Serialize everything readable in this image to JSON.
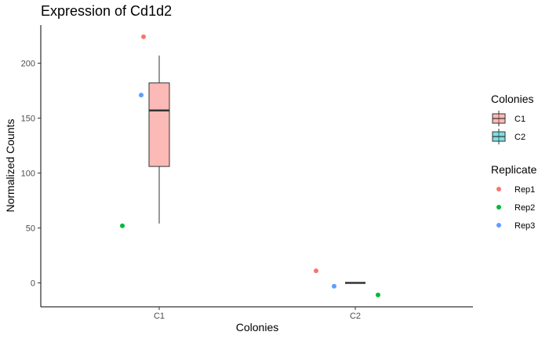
{
  "chart_data": {
    "type": "boxplot",
    "title": "Expression of Cd1d2",
    "xlabel": "Colonies",
    "ylabel": "Normalized Counts",
    "categories": [
      "C1",
      "C2"
    ],
    "ylim": [
      -22,
      235
    ],
    "yticks": [
      0,
      50,
      100,
      150,
      200
    ],
    "grid": false,
    "boxes": [
      {
        "category": "C1",
        "min": 54,
        "q1": 106,
        "median": 157,
        "q3": 182,
        "max": 207,
        "color": "#F8766D"
      },
      {
        "category": "C2",
        "min": 0,
        "q1": 0,
        "median": 0,
        "q3": 0,
        "max": 0,
        "color": "#00BFC4"
      }
    ],
    "points": [
      {
        "category": "C1",
        "replicate": "Rep1",
        "y": 224
      },
      {
        "category": "C1",
        "replicate": "Rep2",
        "y": 52
      },
      {
        "category": "C1",
        "replicate": "Rep3",
        "y": 171
      },
      {
        "category": "C2",
        "replicate": "Rep1",
        "y": 11
      },
      {
        "category": "C2",
        "replicate": "Rep2",
        "y": -11
      },
      {
        "category": "C2",
        "replicate": "Rep3",
        "y": -3
      }
    ],
    "legends": [
      {
        "title": "Colonies",
        "kind": "box",
        "items": [
          {
            "label": "C1",
            "color": "#F8766D"
          },
          {
            "label": "C2",
            "color": "#00BFC4"
          }
        ]
      },
      {
        "title": "Replicate",
        "kind": "point",
        "items": [
          {
            "label": "Rep1",
            "color": "#F8766D"
          },
          {
            "label": "Rep2",
            "color": "#00BA38"
          },
          {
            "label": "Rep3",
            "color": "#619CFF"
          }
        ]
      }
    ],
    "legend_position": "right"
  }
}
